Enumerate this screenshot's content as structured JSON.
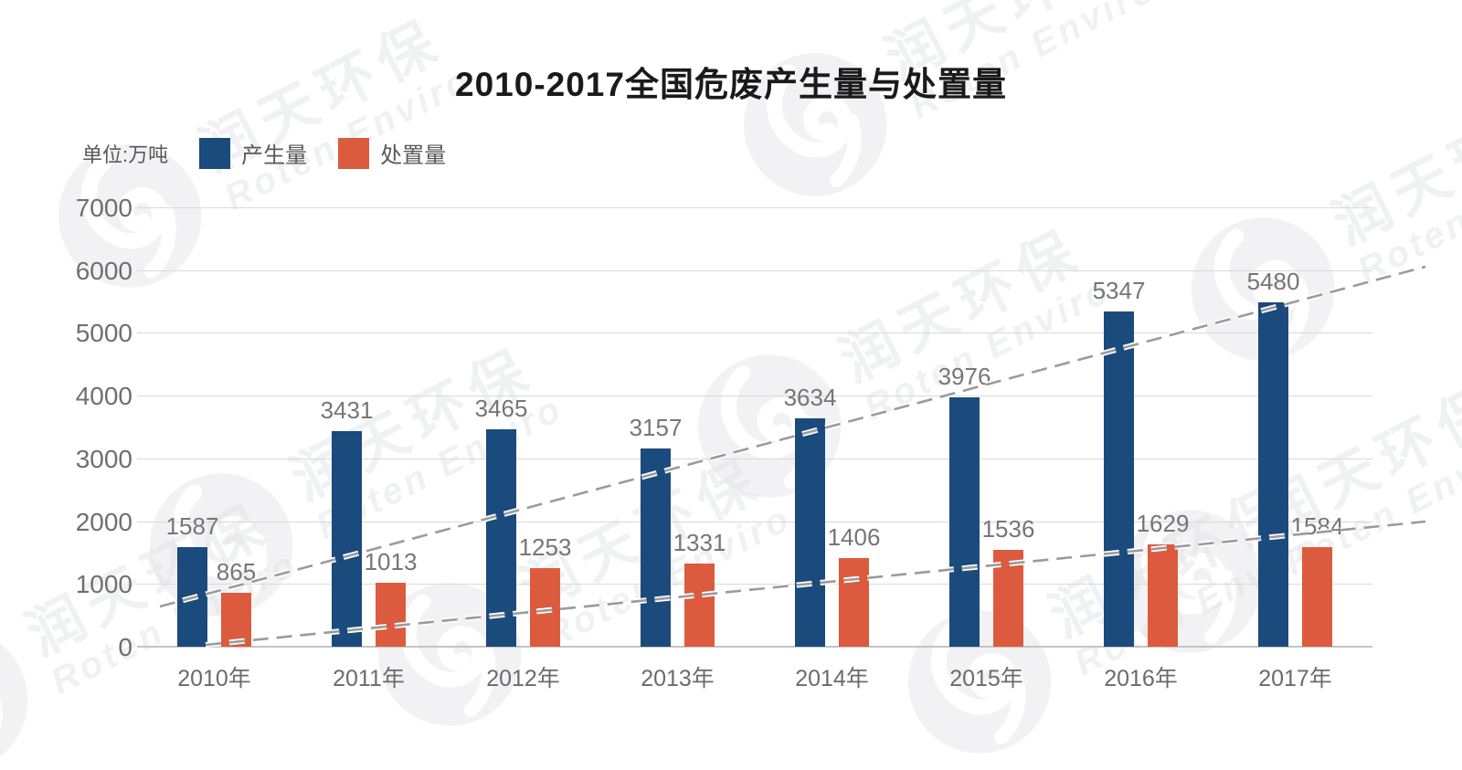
{
  "title": "2010-2017全国危废产生量与处置量",
  "unit_label": "单位:万吨",
  "watermark": {
    "cn": "润天环保",
    "en": "Roten Enviro"
  },
  "chart_data": {
    "type": "bar",
    "title": "2010-2017全国危废产生量与处置量",
    "unit": "万吨",
    "categories": [
      "2010年",
      "2011年",
      "2012年",
      "2013年",
      "2014年",
      "2015年",
      "2016年",
      "2017年"
    ],
    "series": [
      {
        "name": "产生量",
        "color": "#1B4A7D",
        "values": [
          1587,
          3431,
          3465,
          3157,
          3634,
          3976,
          5347,
          5480
        ]
      },
      {
        "name": "处置量",
        "color": "#DC5B3E",
        "values": [
          865,
          1013,
          1253,
          1331,
          1406,
          1536,
          1629,
          1584
        ]
      }
    ],
    "ylim": [
      0,
      7000
    ],
    "yticks": [
      0,
      1000,
      2000,
      3000,
      4000,
      5000,
      6000,
      7000
    ],
    "grid": true,
    "legend_position": "top-left",
    "value_labels": true,
    "trendlines": [
      {
        "for": "产生量",
        "style": "dashed",
        "color": "#9b9b9b"
      },
      {
        "for": "处置量",
        "style": "dashed",
        "color": "#9b9b9b"
      }
    ]
  }
}
